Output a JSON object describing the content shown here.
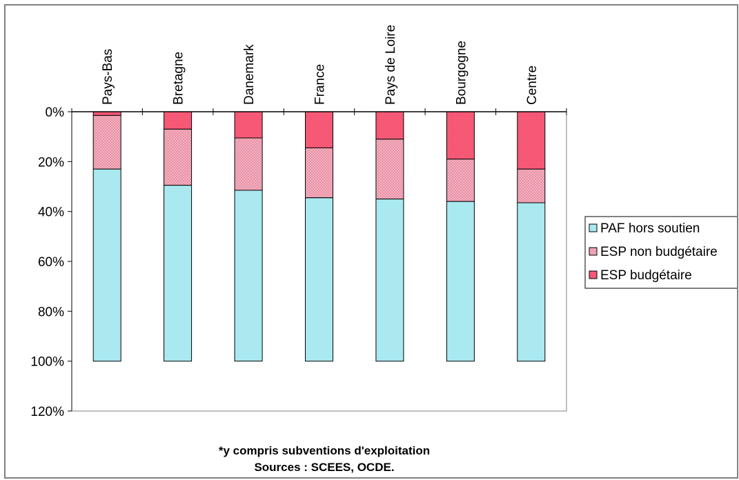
{
  "chart_data": {
    "type": "bar",
    "stacked": true,
    "orientation": "vertical",
    "y_inverted": true,
    "x_axis_position": "top",
    "categories": [
      "Pays-Bas",
      "Bretagne",
      "Danemark",
      "France",
      "Pays de Loire",
      "Bourgogne",
      "Centre"
    ],
    "series": [
      {
        "name": "ESP budgétaire",
        "color": "#f4506e",
        "pattern": "dots",
        "values": [
          1.5,
          7,
          10.5,
          14.5,
          11,
          19,
          23
        ]
      },
      {
        "name": "ESP non budgétaire",
        "color": "#f6b9c7",
        "pattern": "crosshatch",
        "values": [
          21.5,
          22.5,
          21,
          20,
          24,
          17,
          13.5
        ]
      },
      {
        "name": "PAF hors soutien",
        "color": "#a9e9ef",
        "pattern": "solid",
        "values": [
          77,
          70.5,
          68.5,
          65.5,
          65,
          64,
          63.5
        ]
      }
    ],
    "y_ticks": [
      "0%",
      "20%",
      "40%",
      "60%",
      "80%",
      "100%",
      "120%"
    ],
    "ylim": [
      0,
      120
    ],
    "legend_placement": "right",
    "legend_order": [
      "PAF hors soutien",
      "ESP non budgétaire",
      "ESP budgétaire"
    ],
    "grid": false
  },
  "notes": {
    "line1": "*y compris subventions d'exploitation",
    "line2": "Sources : SCEES, OCDE."
  }
}
